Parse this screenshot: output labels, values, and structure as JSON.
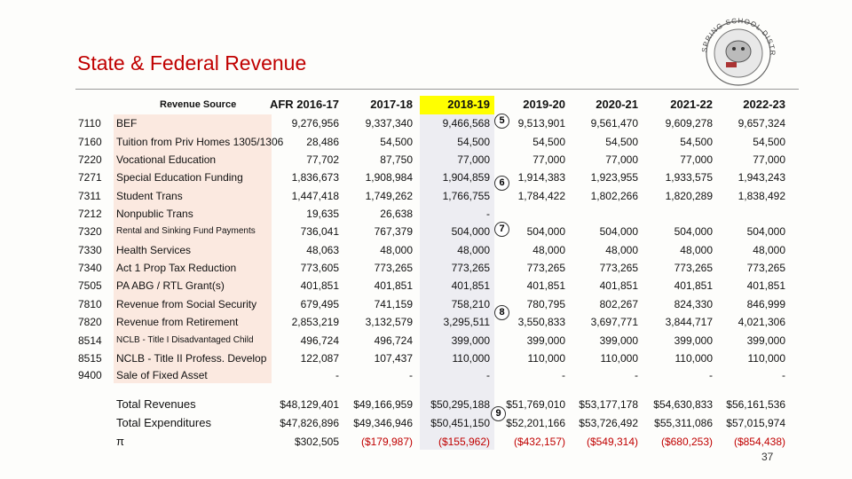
{
  "title": "State & Federal Revenue",
  "logo": "BIG SPRING SCHOOL DISTRICT",
  "page_number": "37",
  "table": {
    "header": [
      "Revenue Source",
      "AFR 2016-17",
      "2017-18",
      "2018-19",
      "2019-20",
      "2020-21",
      "2021-22",
      "2022-23"
    ],
    "rows": [
      {
        "code": "7110",
        "source": "BEF",
        "values": [
          "9,276,956",
          "9,337,340",
          "9,466,568",
          "9,513,901",
          "9,561,470",
          "9,609,278",
          "9,657,324"
        ]
      },
      {
        "code": "7160",
        "source": "Tuition from Priv Homes 1305/1306",
        "values": [
          "28,486",
          "54,500",
          "54,500",
          "54,500",
          "54,500",
          "54,500",
          "54,500"
        ]
      },
      {
        "code": "7220",
        "source": "Vocational Education",
        "values": [
          "77,702",
          "87,750",
          "77,000",
          "77,000",
          "77,000",
          "77,000",
          "77,000"
        ]
      },
      {
        "code": "7271",
        "source": "Special Education Funding",
        "values": [
          "1,836,673",
          "1,908,984",
          "1,904,859",
          "1,914,383",
          "1,923,955",
          "1,933,575",
          "1,943,243"
        ]
      },
      {
        "code": "7311",
        "source": "Student Trans",
        "values": [
          "1,447,418",
          "1,749,262",
          "1,766,755",
          "1,784,422",
          "1,802,266",
          "1,820,289",
          "1,838,492"
        ]
      },
      {
        "code": "7212",
        "source": "Nonpublic Trans",
        "values": [
          "19,635",
          "26,638",
          "-",
          null,
          null,
          null,
          null
        ]
      },
      {
        "code": "7320",
        "source": "Rental and Sinking Fund Payments",
        "values": [
          "736,041",
          "767,379",
          "504,000",
          "504,000",
          "504,000",
          "504,000",
          "504,000"
        ]
      },
      {
        "code": "7330",
        "source": "Health Services",
        "values": [
          "48,063",
          "48,000",
          "48,000",
          "48,000",
          "48,000",
          "48,000",
          "48,000"
        ]
      },
      {
        "code": "7340",
        "source": "Act 1 Prop Tax Reduction",
        "values": [
          "773,605",
          "773,265",
          "773,265",
          "773,265",
          "773,265",
          "773,265",
          "773,265"
        ]
      },
      {
        "code": "7505",
        "source": "PA ABG / RTL Grant(s)",
        "values": [
          "401,851",
          "401,851",
          "401,851",
          "401,851",
          "401,851",
          "401,851",
          "401,851"
        ]
      },
      {
        "code": "7810",
        "source": "Revenue from Social Security",
        "values": [
          "679,495",
          "741,159",
          "758,210",
          "780,795",
          "802,267",
          "824,330",
          "846,999"
        ]
      },
      {
        "code": "7820",
        "source": "Revenue from Retirement",
        "values": [
          "2,853,219",
          "3,132,579",
          "3,295,511",
          "3,550,833",
          "3,697,771",
          "3,844,717",
          "4,021,306"
        ]
      },
      {
        "code": "8514",
        "source": "NCLB - Title I Disadvantaged Child",
        "values": [
          "496,724",
          "496,724",
          "399,000",
          "399,000",
          "399,000",
          "399,000",
          "399,000"
        ]
      },
      {
        "code": "8515",
        "source": "NCLB - Title II Profess. Develop",
        "values": [
          "122,087",
          "107,437",
          "110,000",
          "110,000",
          "110,000",
          "110,000",
          "110,000"
        ]
      },
      {
        "code": "9400",
        "source": "Sale of Fixed Asset",
        "values": [
          "-",
          "-",
          "-",
          "-",
          "-",
          "-",
          "-"
        ]
      }
    ],
    "totals": [
      {
        "label": "Total Revenues",
        "values": [
          "$48,129,401",
          "$49,166,959",
          "$50,295,188",
          "$51,769,010",
          "$53,177,178",
          "$54,630,833",
          "$56,161,536"
        ]
      },
      {
        "label": "Total Expenditures",
        "values": [
          "$47,826,896",
          "$49,346,946",
          "$50,451,150",
          "$52,201,166",
          "$53,726,492",
          "$55,311,086",
          "$57,015,974"
        ]
      },
      {
        "label": "π",
        "values": [
          "$302,505",
          "($179,987)",
          "($155,962)",
          "($432,157)",
          "($549,314)",
          "($680,253)",
          "($854,438)"
        ]
      }
    ]
  },
  "markers": [
    "5",
    "6",
    "7",
    "8",
    "9"
  ]
}
